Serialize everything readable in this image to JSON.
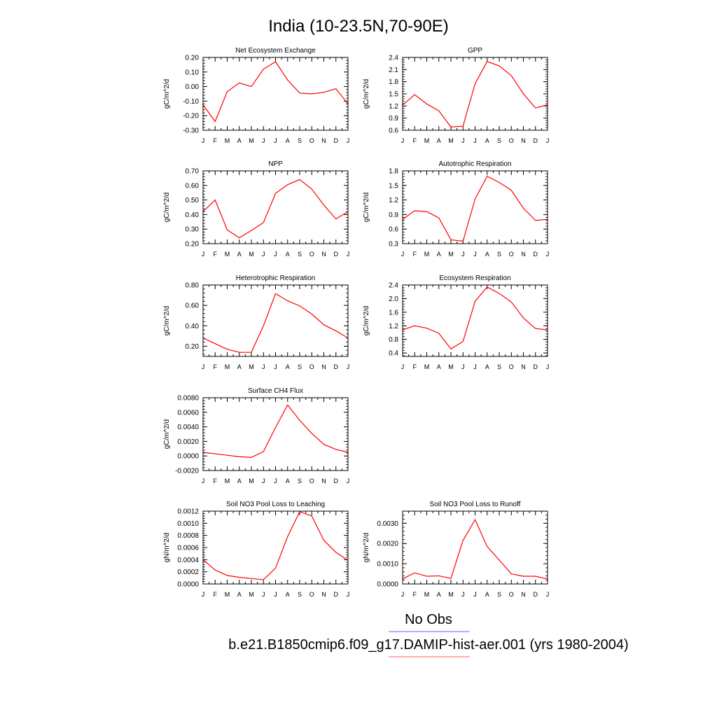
{
  "figure": {
    "title": "India (10-23.5N,70-90E)",
    "legend": {
      "obs_label": "No Obs",
      "obs_color": "#8080ff",
      "model_label": "b.e21.B1850cmip6.f09_g17.DAMIP-hist-aer.001 (yrs 1980-2004)",
      "model_color": "#ff8080"
    },
    "line_color": "#ff0000"
  },
  "chart_data": [
    {
      "type": "line",
      "title": "Net Ecosystem Exchange",
      "ylabel": "gC/m^2/d",
      "categories": [
        "J",
        "F",
        "M",
        "A",
        "M",
        "J",
        "J",
        "A",
        "S",
        "O",
        "N",
        "D",
        "J"
      ],
      "ylim": [
        -0.3,
        0.2
      ],
      "yticks": [
        "-0.30",
        "-0.20",
        "-0.10",
        "0.00",
        "0.10",
        "0.20"
      ],
      "values": [
        -0.125,
        -0.24,
        -0.035,
        0.025,
        0.0,
        0.12,
        0.17,
        0.045,
        -0.045,
        -0.05,
        -0.04,
        -0.015,
        -0.12
      ]
    },
    {
      "type": "line",
      "title": "GPP",
      "ylabel": "gC/m^2/d",
      "categories": [
        "J",
        "F",
        "M",
        "A",
        "M",
        "J",
        "J",
        "A",
        "S",
        "O",
        "N",
        "D",
        "J"
      ],
      "ylim": [
        0.6,
        2.4
      ],
      "yticks": [
        "0.6",
        "0.9",
        "1.2",
        "1.5",
        "1.8",
        "2.1",
        "2.4"
      ],
      "values": [
        1.22,
        1.48,
        1.25,
        1.08,
        0.68,
        0.7,
        1.75,
        2.3,
        2.19,
        1.95,
        1.5,
        1.15,
        1.23
      ]
    },
    {
      "type": "line",
      "title": "NPP",
      "ylabel": "gC/m^2/d",
      "categories": [
        "J",
        "F",
        "M",
        "A",
        "M",
        "J",
        "J",
        "A",
        "S",
        "O",
        "N",
        "D",
        "J"
      ],
      "ylim": [
        0.2,
        0.7
      ],
      "yticks": [
        "0.20",
        "0.30",
        "0.40",
        "0.50",
        "0.60",
        "0.70"
      ],
      "values": [
        0.42,
        0.5,
        0.295,
        0.24,
        0.29,
        0.345,
        0.545,
        0.605,
        0.64,
        0.575,
        0.465,
        0.37,
        0.42
      ]
    },
    {
      "type": "line",
      "title": "Autotrophic Respiration",
      "ylabel": "gC/m^2/d",
      "categories": [
        "J",
        "F",
        "M",
        "A",
        "M",
        "J",
        "J",
        "A",
        "S",
        "O",
        "N",
        "D",
        "J"
      ],
      "ylim": [
        0.3,
        1.8
      ],
      "yticks": [
        "0.3",
        "0.6",
        "0.9",
        "1.2",
        "1.5",
        "1.8"
      ],
      "values": [
        0.8,
        0.98,
        0.96,
        0.83,
        0.38,
        0.35,
        1.22,
        1.69,
        1.56,
        1.4,
        1.03,
        0.78,
        0.8
      ]
    },
    {
      "type": "line",
      "title": "Heterotrophic Respiration",
      "ylabel": "gC/m^2/d",
      "categories": [
        "J",
        "F",
        "M",
        "A",
        "M",
        "J",
        "J",
        "A",
        "S",
        "O",
        "N",
        "D",
        "J"
      ],
      "ylim": [
        0.1,
        0.8
      ],
      "yticks": [
        "0.20",
        "0.40",
        "0.60",
        "0.80"
      ],
      "values": [
        0.28,
        0.225,
        0.17,
        0.14,
        0.14,
        0.4,
        0.715,
        0.645,
        0.595,
        0.515,
        0.41,
        0.35,
        0.28
      ]
    },
    {
      "type": "line",
      "title": "Ecosystem Respiration",
      "ylabel": "gC/m^2/d",
      "categories": [
        "J",
        "F",
        "M",
        "A",
        "M",
        "J",
        "J",
        "A",
        "S",
        "O",
        "N",
        "D",
        "J"
      ],
      "ylim": [
        0.3,
        2.4
      ],
      "yticks": [
        "0.4",
        "0.8",
        "1.2",
        "1.6",
        "2.0",
        "2.4"
      ],
      "values": [
        1.08,
        1.2,
        1.13,
        0.98,
        0.52,
        0.74,
        1.92,
        2.34,
        2.15,
        1.9,
        1.43,
        1.12,
        1.08
      ]
    },
    {
      "type": "line",
      "title": "Surface CH4 Flux",
      "ylabel": "gC/m^2/d",
      "categories": [
        "J",
        "F",
        "M",
        "A",
        "M",
        "J",
        "J",
        "A",
        "S",
        "O",
        "N",
        "D",
        "J"
      ],
      "ylim": [
        -0.002,
        0.008
      ],
      "yticks": [
        "-0.0020",
        "0.0000",
        "0.0020",
        "0.0040",
        "0.0060",
        "0.0080"
      ],
      "values": [
        0.0005,
        0.0003,
        0.0001,
        -0.0001,
        -0.0002,
        0.0006,
        0.0039,
        0.007,
        0.0049,
        0.0031,
        0.0016,
        0.0009,
        0.0005
      ]
    },
    {
      "type": "line",
      "title": "Soil NO3 Pool Loss to Leaching",
      "ylabel": "gN/m^2/d",
      "categories": [
        "J",
        "F",
        "M",
        "A",
        "M",
        "J",
        "J",
        "A",
        "S",
        "O",
        "N",
        "D",
        "J"
      ],
      "ylim": [
        0.0,
        0.0012
      ],
      "yticks": [
        "0.0000",
        "0.0002",
        "0.0004",
        "0.0006",
        "0.0008",
        "0.0010",
        "0.0012"
      ],
      "values": [
        0.0004,
        0.00023,
        0.00014,
        0.00011,
        9e-05,
        7e-05,
        0.00026,
        0.00078,
        0.00119,
        0.00112,
        0.00072,
        0.00052,
        0.00039
      ]
    },
    {
      "type": "line",
      "title": "Soil NO3 Pool Loss to Runoff",
      "ylabel": "gN/m^2/d",
      "categories": [
        "J",
        "F",
        "M",
        "A",
        "M",
        "J",
        "J",
        "A",
        "S",
        "O",
        "N",
        "D",
        "J"
      ],
      "ylim": [
        0.0,
        0.0036
      ],
      "yticks": [
        "0.0000",
        "0.0010",
        "0.0020",
        "0.0030"
      ],
      "values": [
        0.00025,
        0.00055,
        0.00038,
        0.0004,
        0.00028,
        0.00215,
        0.00318,
        0.00185,
        0.00118,
        0.0005,
        0.00038,
        0.00038,
        0.00025
      ]
    }
  ]
}
